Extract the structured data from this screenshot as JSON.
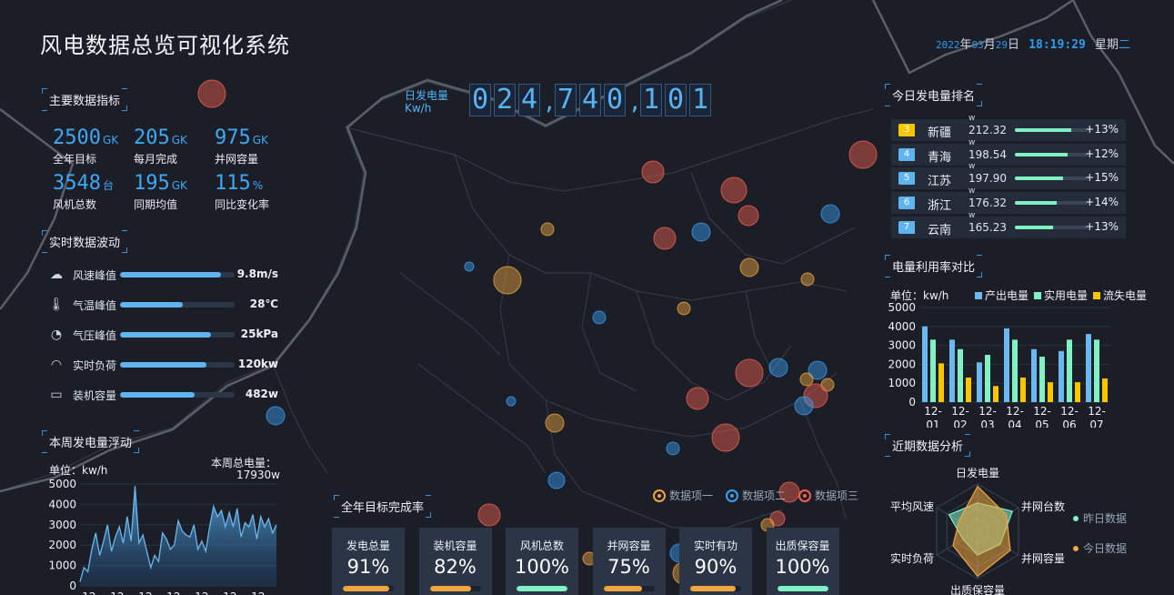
{
  "header": {
    "title": "风电数据总览可视化系统",
    "date": {
      "year": "2022",
      "year_label": "年",
      "month": "03",
      "month_label": "月",
      "day": "29",
      "day_label": "日",
      "time": "18:19:29",
      "weekday_prefix": "星期",
      "weekday": "二"
    }
  },
  "main_indicators": {
    "title": "主要数据指标",
    "items": [
      {
        "value": "2500",
        "unit": "GK",
        "label": "全年目标"
      },
      {
        "value": "205",
        "unit": "GK",
        "label": "每月完成"
      },
      {
        "value": "975",
        "unit": "GK",
        "label": "并网容量"
      },
      {
        "value": "3548",
        "unit": "台",
        "label": "风机总数"
      },
      {
        "value": "195",
        "unit": "GK",
        "label": "同期均值"
      },
      {
        "value": "115",
        "unit": "%",
        "label": "同比变化率"
      }
    ]
  },
  "realtime": {
    "title": "实时数据波动",
    "items": [
      {
        "icon": "wind-icon",
        "glyph": "☁",
        "label": "风速峰值",
        "value": "9.8m/s",
        "level": 0.88
      },
      {
        "icon": "thermometer-icon",
        "glyph": "🌡",
        "label": "气温峰值",
        "value": "28℃",
        "level": 0.55
      },
      {
        "icon": "pressure-gauge-icon",
        "glyph": "◔",
        "label": "气压峰值",
        "value": "25kPa",
        "level": 0.79
      },
      {
        "icon": "load-gauge-icon",
        "glyph": "◠",
        "label": "实时负荷",
        "value": "120kw",
        "level": 0.75
      },
      {
        "icon": "battery-icon",
        "glyph": "▭",
        "label": "装机容量",
        "value": "482w",
        "level": 0.65
      }
    ]
  },
  "weekly": {
    "title": "本周发电量浮动",
    "unit_label": "单位：kw/h",
    "total_label": "本周总电量：",
    "total_value": "17930w"
  },
  "daily_counter": {
    "label": "日发电量",
    "unit": "Kw/h",
    "digits": [
      "0",
      "2",
      "4",
      ",",
      "7",
      "4",
      "0",
      ",",
      "1",
      "0",
      "1"
    ]
  },
  "map_legend": {
    "items": [
      {
        "label": "数据项一",
        "color": "#f0a640"
      },
      {
        "label": "数据项二",
        "color": "#3a9ef0"
      },
      {
        "label": "数据项三",
        "color": "#f06050"
      }
    ]
  },
  "goal": {
    "title": "全年目标完成率",
    "cards": [
      {
        "label": "发电总量",
        "value": "91%",
        "level": 0.91,
        "color": "#f0a640"
      },
      {
        "label": "装机容量",
        "value": "82%",
        "level": 0.82,
        "color": "#f0a640"
      },
      {
        "label": "风机总数",
        "value": "100%",
        "level": 1.0,
        "color": "#7ff2c4"
      },
      {
        "label": "并网容量",
        "value": "75%",
        "level": 0.75,
        "color": "#f0a640"
      },
      {
        "label": "实时有功",
        "value": "90%",
        "level": 0.9,
        "color": "#f0a640"
      },
      {
        "label": "出质保容量",
        "value": "100%",
        "level": 1.0,
        "color": "#7ff2c4"
      }
    ]
  },
  "ranking": {
    "title": "今日发电量排名",
    "unit": "w",
    "rows": [
      {
        "rank": "3",
        "name": "新疆",
        "value": "212.32",
        "change": "+13%",
        "level": 0.78,
        "color": "#f7c600"
      },
      {
        "rank": "4",
        "name": "青海",
        "value": "198.54",
        "change": "+12%",
        "level": 0.72,
        "color": "#5fb3ee"
      },
      {
        "rank": "5",
        "name": "江苏",
        "value": "197.90",
        "change": "+15%",
        "level": 0.66,
        "color": "#5fb3ee"
      },
      {
        "rank": "6",
        "name": "浙江",
        "value": "176.32",
        "change": "+14%",
        "level": 0.58,
        "color": "#5fb3ee"
      },
      {
        "rank": "7",
        "name": "云南",
        "value": "165.23",
        "change": "+13%",
        "level": 0.52,
        "color": "#5fb3ee"
      }
    ]
  },
  "utilization": {
    "title": "电量利用率对比",
    "unit_label": "单位：kw/h"
  },
  "recent": {
    "title": "近期数据分析"
  },
  "chart_data": [
    {
      "type": "area",
      "title": "本周发电量浮动",
      "ylabel": "kw/h",
      "ylim": [
        0,
        5000
      ],
      "yticks": [
        0,
        1000,
        2000,
        3000,
        4000,
        5000
      ],
      "xticks": [
        "12-",
        "12-",
        "12-",
        "12-",
        "12-",
        "12-",
        "12-"
      ],
      "values": [
        200,
        900,
        700,
        1800,
        2600,
        1500,
        2200,
        3000,
        1700,
        2400,
        2900,
        2100,
        3400,
        2200,
        4900,
        2100,
        2500,
        1700,
        900,
        1500,
        1200,
        2600,
        2300,
        1800,
        2000,
        3200,
        2700,
        2500,
        2400,
        3000,
        1800,
        2200,
        1700,
        2900,
        3900,
        3400,
        3700,
        2900,
        3600,
        2900,
        3800,
        2400,
        3100,
        2900,
        3500,
        2300,
        3400,
        2900,
        3300,
        2600,
        3000
      ]
    },
    {
      "type": "bar",
      "title": "电量利用率对比",
      "ylabel": "kw/h",
      "ylim": [
        0,
        5000
      ],
      "yticks": [
        0,
        1000,
        2000,
        3000,
        4000,
        5000
      ],
      "categories": [
        "12-01",
        "12-02",
        "12-03",
        "12-04",
        "12-05",
        "12-06",
        "12-07"
      ],
      "series": [
        {
          "name": "产出电量",
          "color": "#6bb7f0",
          "values": [
            4000,
            3300,
            2100,
            3900,
            2800,
            2700,
            3600
          ]
        },
        {
          "name": "实用电量",
          "color": "#7ff2c4",
          "values": [
            3300,
            2800,
            2500,
            3300,
            2400,
            3300,
            3300
          ]
        },
        {
          "name": "流失电量",
          "color": "#f7c600",
          "values": [
            2050,
            1300,
            850,
            1300,
            1050,
            1050,
            1250
          ]
        }
      ]
    },
    {
      "type": "radar",
      "title": "近期数据分析",
      "indicators": [
        "日发电量",
        "并网台数",
        "并网容量",
        "出质保容量",
        "实时负荷",
        "平均风速"
      ],
      "series": [
        {
          "name": "昨日数据",
          "color": "#7ff2c4",
          "values": [
            0.6,
            0.85,
            0.55,
            0.5,
            0.35,
            0.7
          ]
        },
        {
          "name": "今日数据",
          "color": "#f0a640",
          "values": [
            0.95,
            0.7,
            0.8,
            0.95,
            0.6,
            0.45
          ]
        }
      ]
    }
  ]
}
